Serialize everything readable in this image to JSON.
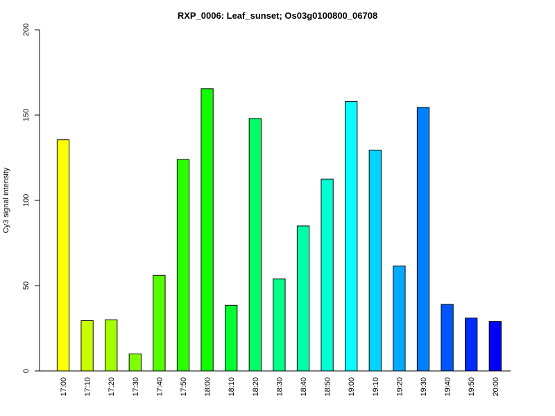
{
  "chart_data": {
    "type": "bar",
    "title": "RXP_0006: Leaf_sunset; Os03g0100800_06708",
    "xlabel": "",
    "ylabel": "Cy3 signal intensity",
    "ylim": [
      0,
      200
    ],
    "yticks": [
      0,
      50,
      100,
      150,
      200
    ],
    "grid": false,
    "categories": [
      "17:00",
      "17:10",
      "17:20",
      "17:30",
      "17:40",
      "17:50",
      "18:00",
      "18:10",
      "18:20",
      "18:30",
      "18:40",
      "18:50",
      "19:00",
      "19:10",
      "19:20",
      "19:30",
      "19:40",
      "19:50",
      "20:00"
    ],
    "values": [
      135.5,
      29.5,
      30,
      10,
      56,
      124,
      165.5,
      38.5,
      148,
      54,
      85,
      112.5,
      158,
      129.5,
      61.5,
      154.5,
      39,
      31,
      29
    ],
    "colors": [
      "#FFFF00",
      "#C8FF00",
      "#A6FF00",
      "#80FF00",
      "#55FF00",
      "#2BFF00",
      "#11FF00",
      "#00FF33",
      "#00FF66",
      "#00FF88",
      "#00FFAA",
      "#00FFD5",
      "#00FFFF",
      "#00D4FF",
      "#00AAFF",
      "#0080FF",
      "#0055FF",
      "#002BFF",
      "#0000FF"
    ]
  }
}
